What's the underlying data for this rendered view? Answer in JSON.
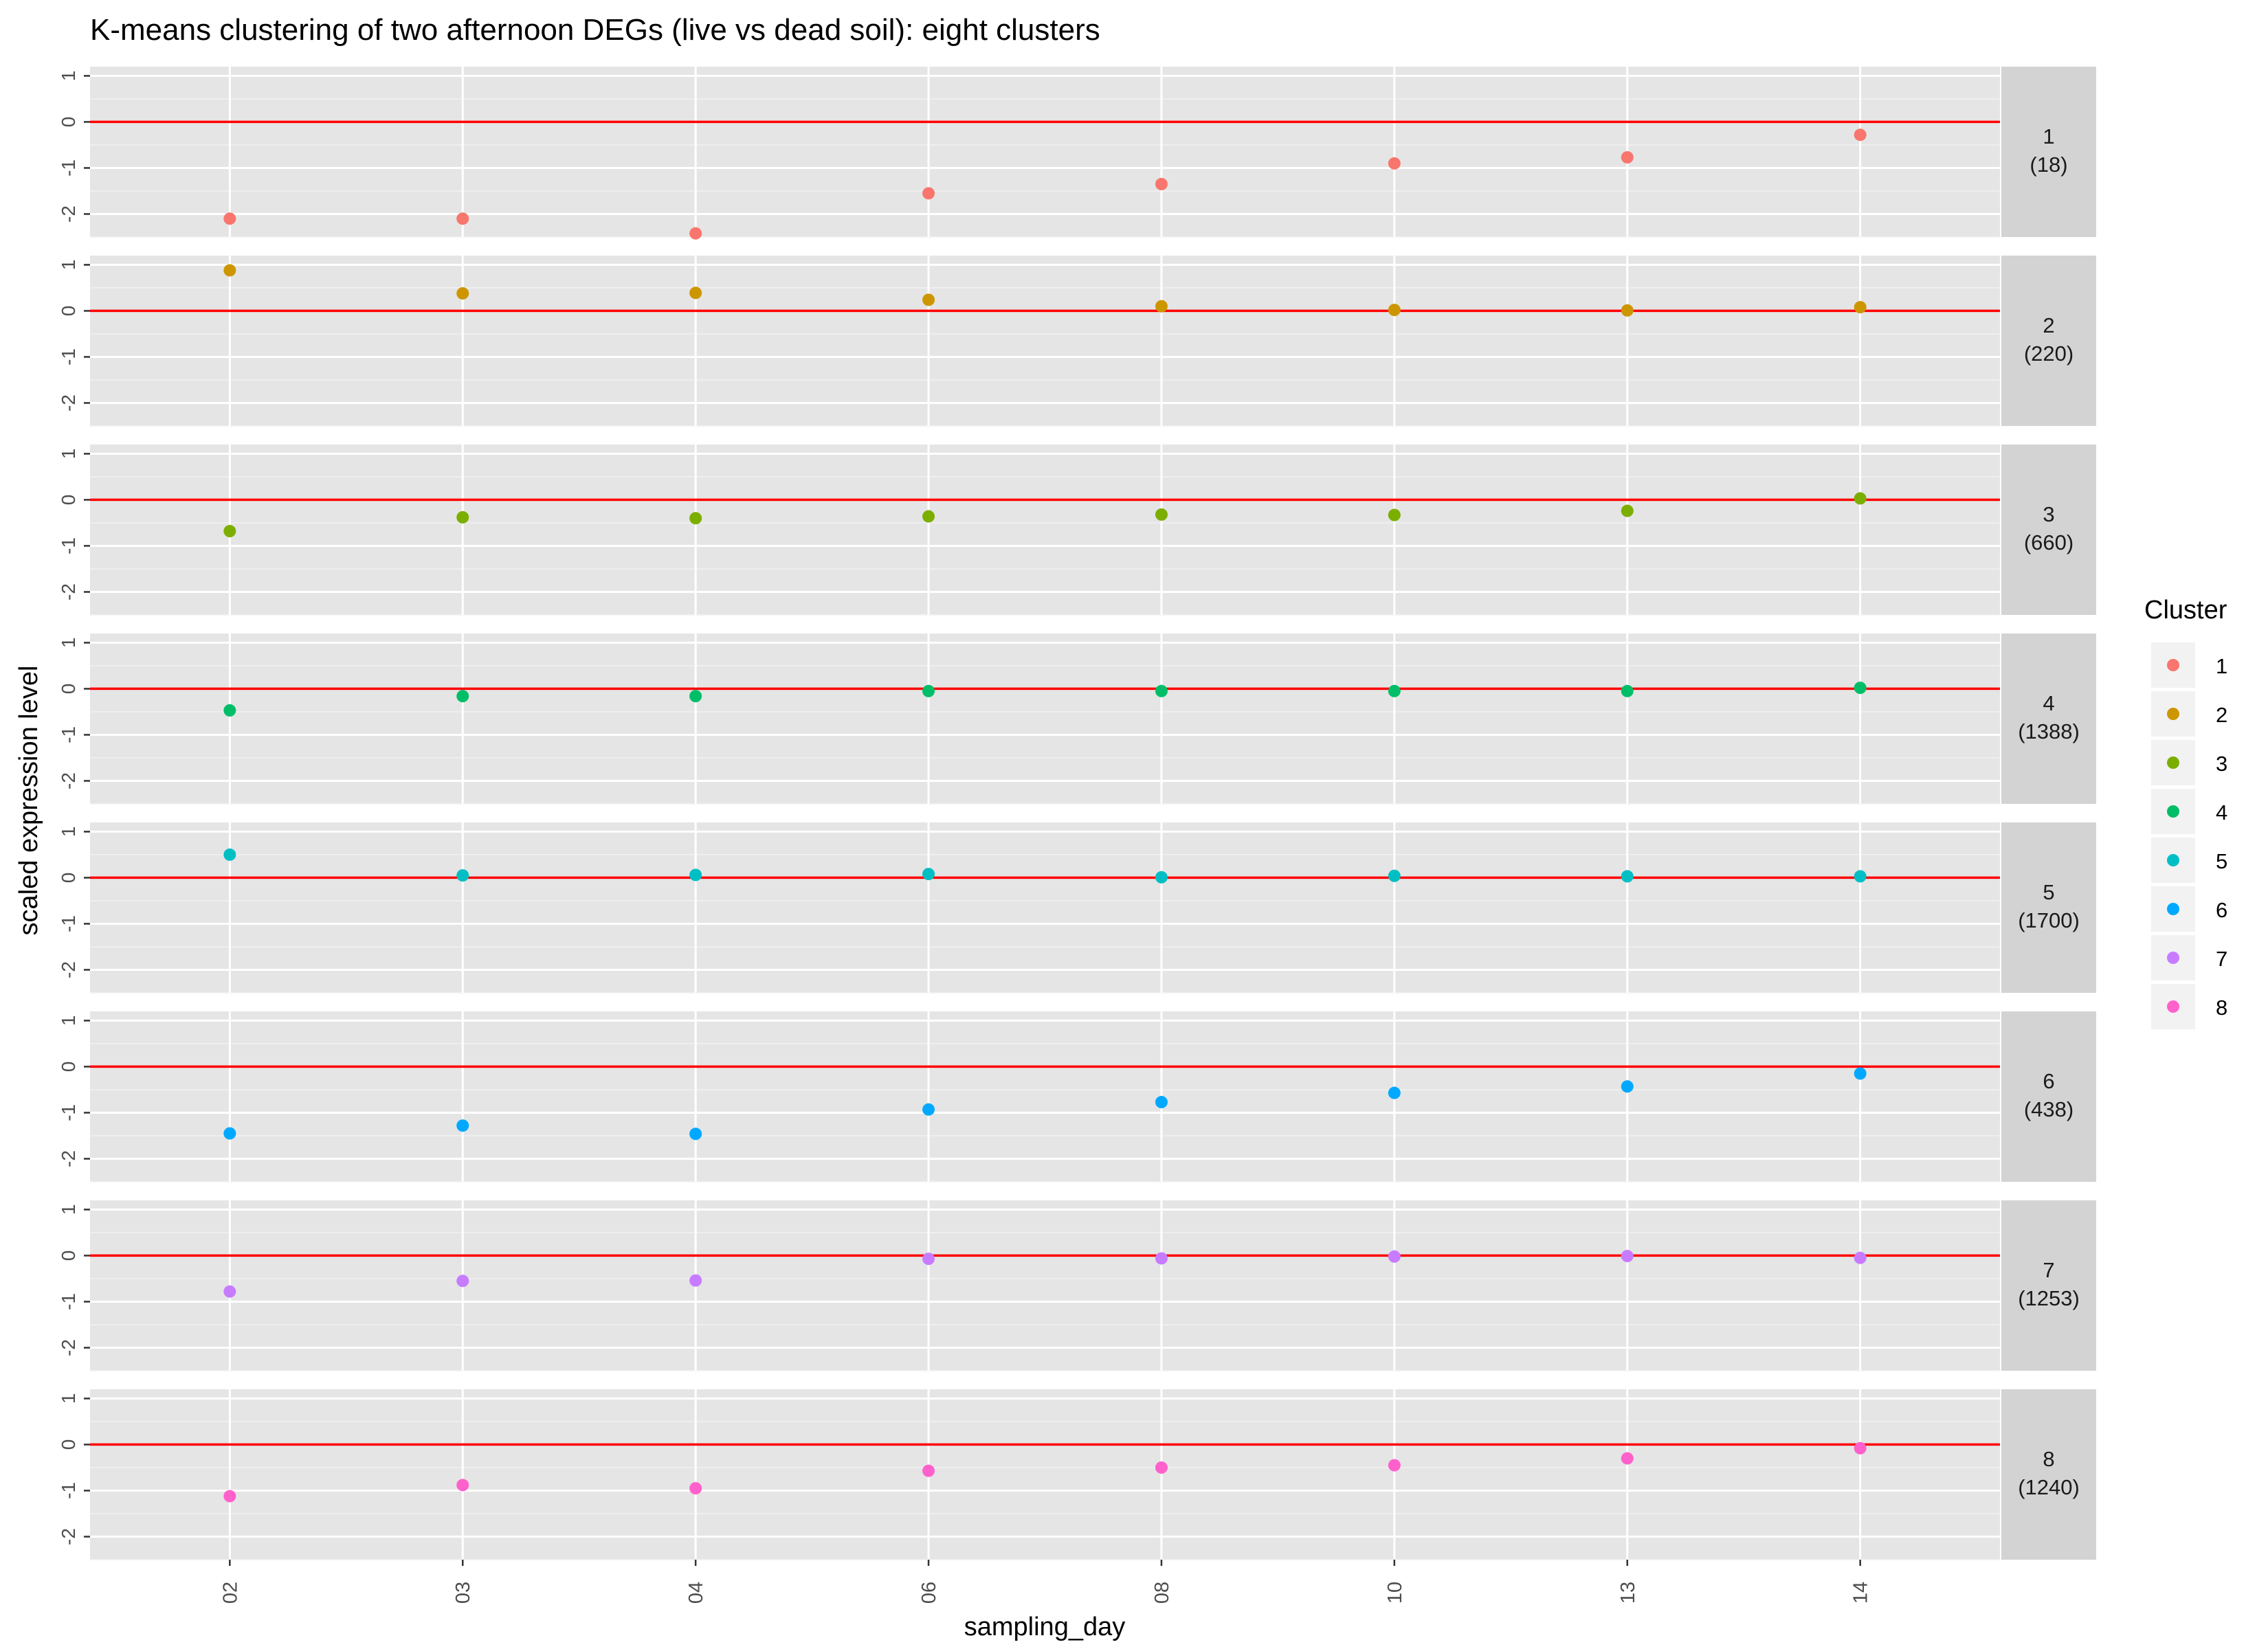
{
  "chart_data": {
    "type": "scatter",
    "title": "K-means clustering of two afternoon DEGs (live vs dead soil): eight clusters",
    "xlabel": "sampling_day",
    "ylabel": "scaled expression level",
    "categories": [
      "02",
      "03",
      "04",
      "06",
      "08",
      "10",
      "13",
      "14"
    ],
    "ylim": [
      -2.5,
      1.2
    ],
    "yticks": [
      -2,
      -1,
      0,
      1
    ],
    "reference_line": 0,
    "reference_line_color": "#FF0000",
    "panel_background": "#E5E5E5",
    "strip_background": "#D3D3D3",
    "grid": true,
    "legend": {
      "title": "Cluster",
      "position": "right"
    },
    "facets": [
      {
        "cluster": "1",
        "count": "(18)",
        "color": "#F8766D",
        "values": [
          -2.1,
          -2.1,
          -2.42,
          -1.55,
          -1.35,
          -0.9,
          -0.77,
          -0.28
        ]
      },
      {
        "cluster": "2",
        "count": "(220)",
        "color": "#CD9600",
        "values": [
          0.88,
          0.38,
          0.39,
          0.24,
          0.1,
          0.02,
          0.01,
          0.08
        ]
      },
      {
        "cluster": "3",
        "count": "(660)",
        "color": "#7CAE00",
        "values": [
          -0.68,
          -0.38,
          -0.4,
          -0.36,
          -0.32,
          -0.33,
          -0.24,
          0.03
        ]
      },
      {
        "cluster": "4",
        "count": "(1388)",
        "color": "#00BE67",
        "values": [
          -0.47,
          -0.16,
          -0.16,
          -0.05,
          -0.05,
          -0.05,
          -0.05,
          0.02
        ]
      },
      {
        "cluster": "5",
        "count": "(1700)",
        "color": "#00BFC4",
        "values": [
          0.5,
          0.05,
          0.06,
          0.08,
          0.01,
          0.04,
          0.03,
          0.03
        ]
      },
      {
        "cluster": "6",
        "count": "(438)",
        "color": "#00A9FF",
        "values": [
          -1.45,
          -1.28,
          -1.46,
          -0.93,
          -0.77,
          -0.57,
          -0.43,
          -0.15
        ]
      },
      {
        "cluster": "7",
        "count": "(1253)",
        "color": "#C77CFF",
        "values": [
          -0.78,
          -0.55,
          -0.54,
          -0.07,
          -0.06,
          -0.02,
          -0.01,
          -0.05
        ]
      },
      {
        "cluster": "8",
        "count": "(1240)",
        "color": "#FF61CC",
        "values": [
          -1.12,
          -0.88,
          -0.95,
          -0.57,
          -0.5,
          -0.45,
          -0.3,
          -0.08
        ]
      }
    ]
  }
}
